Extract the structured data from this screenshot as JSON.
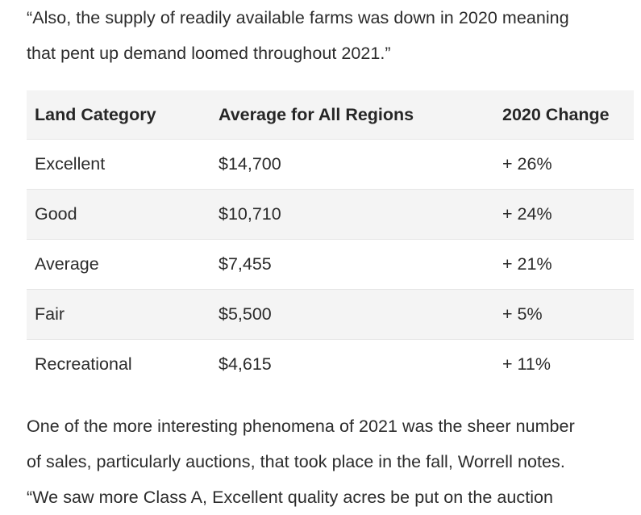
{
  "intro_paragraph": {
    "line1": "“Also, the supply of readily available farms was down in 2020 meaning",
    "line2": "that pent up demand loomed throughout 2021.”"
  },
  "table": {
    "headers": [
      "Land Category",
      "Average for All Regions",
      "2020 Change"
    ],
    "rows": [
      {
        "category": "Excellent",
        "average": "$14,700",
        "change": "+ 26%"
      },
      {
        "category": "Good",
        "average": "$10,710",
        "change": "+ 24%"
      },
      {
        "category": "Average",
        "average": "$7,455",
        "change": "+ 21%"
      },
      {
        "category": "Fair",
        "average": "$5,500",
        "change": "+ 5%"
      },
      {
        "category": "Recreational",
        "average": "$4,615",
        "change": "+ 11%"
      }
    ]
  },
  "outro_paragraph": {
    "line1": "One of the more interesting phenomena of 2021 was the sheer number",
    "line2": "of sales, particularly auctions, that took place in the fall, Worrell notes.",
    "line3": "“We saw more Class A, Excellent quality acres be put on the auction"
  }
}
